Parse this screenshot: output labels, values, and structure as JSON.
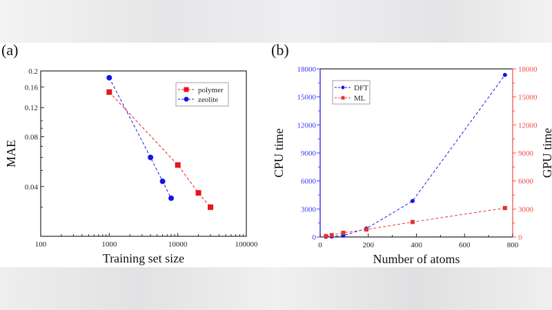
{
  "chart_data": [
    {
      "panel_label": "(a)",
      "type": "line",
      "xlabel": "Training set size",
      "ylabel": "MAE",
      "x_scale": "log",
      "y_scale": "log",
      "xlim": [
        100,
        100000
      ],
      "ylim": [
        0.02,
        0.2
      ],
      "x_ticks": [
        "100",
        "1000",
        "10000",
        "100000"
      ],
      "y_ticks": [
        "0.2",
        "0.16",
        "0.12",
        "0.08",
        "0.04"
      ],
      "y_tick_values": [
        0.2,
        0.16,
        0.12,
        0.08,
        0.04
      ],
      "legend_position": "top-right",
      "grid": false,
      "series": [
        {
          "name": "polymer",
          "color": "#e8141c",
          "marker": "square",
          "x": [
            1000,
            10000,
            20000,
            30000
          ],
          "y": [
            0.149,
            0.054,
            0.0366,
            0.03
          ]
        },
        {
          "name": "zeolite",
          "color": "#1414e8",
          "marker": "circle",
          "x": [
            1000,
            4000,
            6000,
            8000
          ],
          "y": [
            0.182,
            0.06,
            0.043,
            0.034
          ]
        }
      ]
    },
    {
      "panel_label": "(b)",
      "type": "line",
      "xlabel": "Number of atoms",
      "ylabel": "CPU time",
      "ylabel_right": "GPU time",
      "xlim": [
        0,
        800
      ],
      "ylim": [
        0,
        18000
      ],
      "ylim_right": [
        0,
        18000
      ],
      "x_ticks": [
        "0",
        "200",
        "400",
        "600",
        "800"
      ],
      "y_ticks": [
        "0",
        "3000",
        "6000",
        "9000",
        "12000",
        "15000",
        "18000"
      ],
      "left_axis_color": "#3b3bf0",
      "right_axis_color": "#f04848",
      "legend_position": "top-left",
      "grid": false,
      "series": [
        {
          "name": "DFT",
          "color": "#1414e8",
          "marker": "circle",
          "axis": "left",
          "x": [
            24,
            48,
            96,
            192,
            384,
            768
          ],
          "y": [
            20,
            50,
            150,
            900,
            3850,
            17350
          ]
        },
        {
          "name": "ML",
          "color": "#e83030",
          "marker": "square",
          "axis": "right",
          "x": [
            24,
            48,
            96,
            192,
            384,
            768
          ],
          "y": [
            100,
            200,
            450,
            800,
            1600,
            3100
          ]
        }
      ]
    }
  ]
}
